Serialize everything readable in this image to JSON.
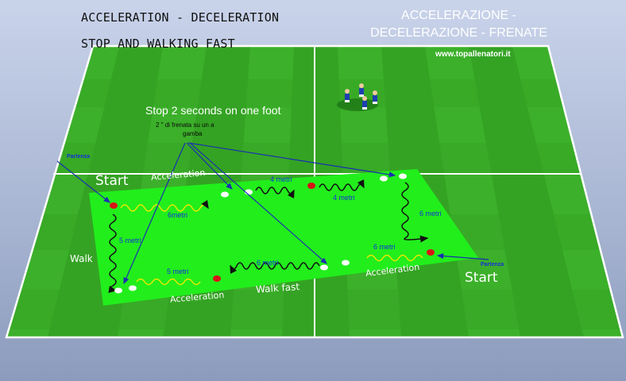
{
  "title_en": {
    "line1": "ACCELERATION  -  DECELERATION",
    "line2": "STOP  AND WALKING FAST"
  },
  "title_it": {
    "line1": "ACCELERAZIONE -",
    "line2": "DECELERAZIONE - FRENATE"
  },
  "website": "www.topallenatori.it",
  "note": {
    "en": "Stop 2 seconds on one foot",
    "it_line1": "2 \"  di frenata su un a",
    "it_line2": "gamba"
  },
  "labels": {
    "start_left": "Start",
    "start_right": "Start",
    "partenza_left": "Partenza",
    "partenza_right": "Partenza",
    "acceleration_top": "Acceleration",
    "acceleration_bottom": "Acceleration",
    "acceleration_right": "Acceleration",
    "walk": "Walk",
    "walk_fast": "Walk fast"
  },
  "distances": {
    "top_4m_a": "4 metri",
    "top_4m_b": "4 metri",
    "left_6m": "6metri",
    "right_6m": "6 metri",
    "bottom_right_6m": "6 metri",
    "bottom_mid_6m": "6 metri",
    "bottom_left_5m": "5 metri",
    "left_5m": "5 metri"
  },
  "colors": {
    "grass_light": "#3fb52a",
    "grass_dark": "#2f9e20",
    "zone": "#22ee1c",
    "arrow": "#1a2fb0",
    "cone_red": "#d81515",
    "player_blue": "#1d3fb0"
  }
}
